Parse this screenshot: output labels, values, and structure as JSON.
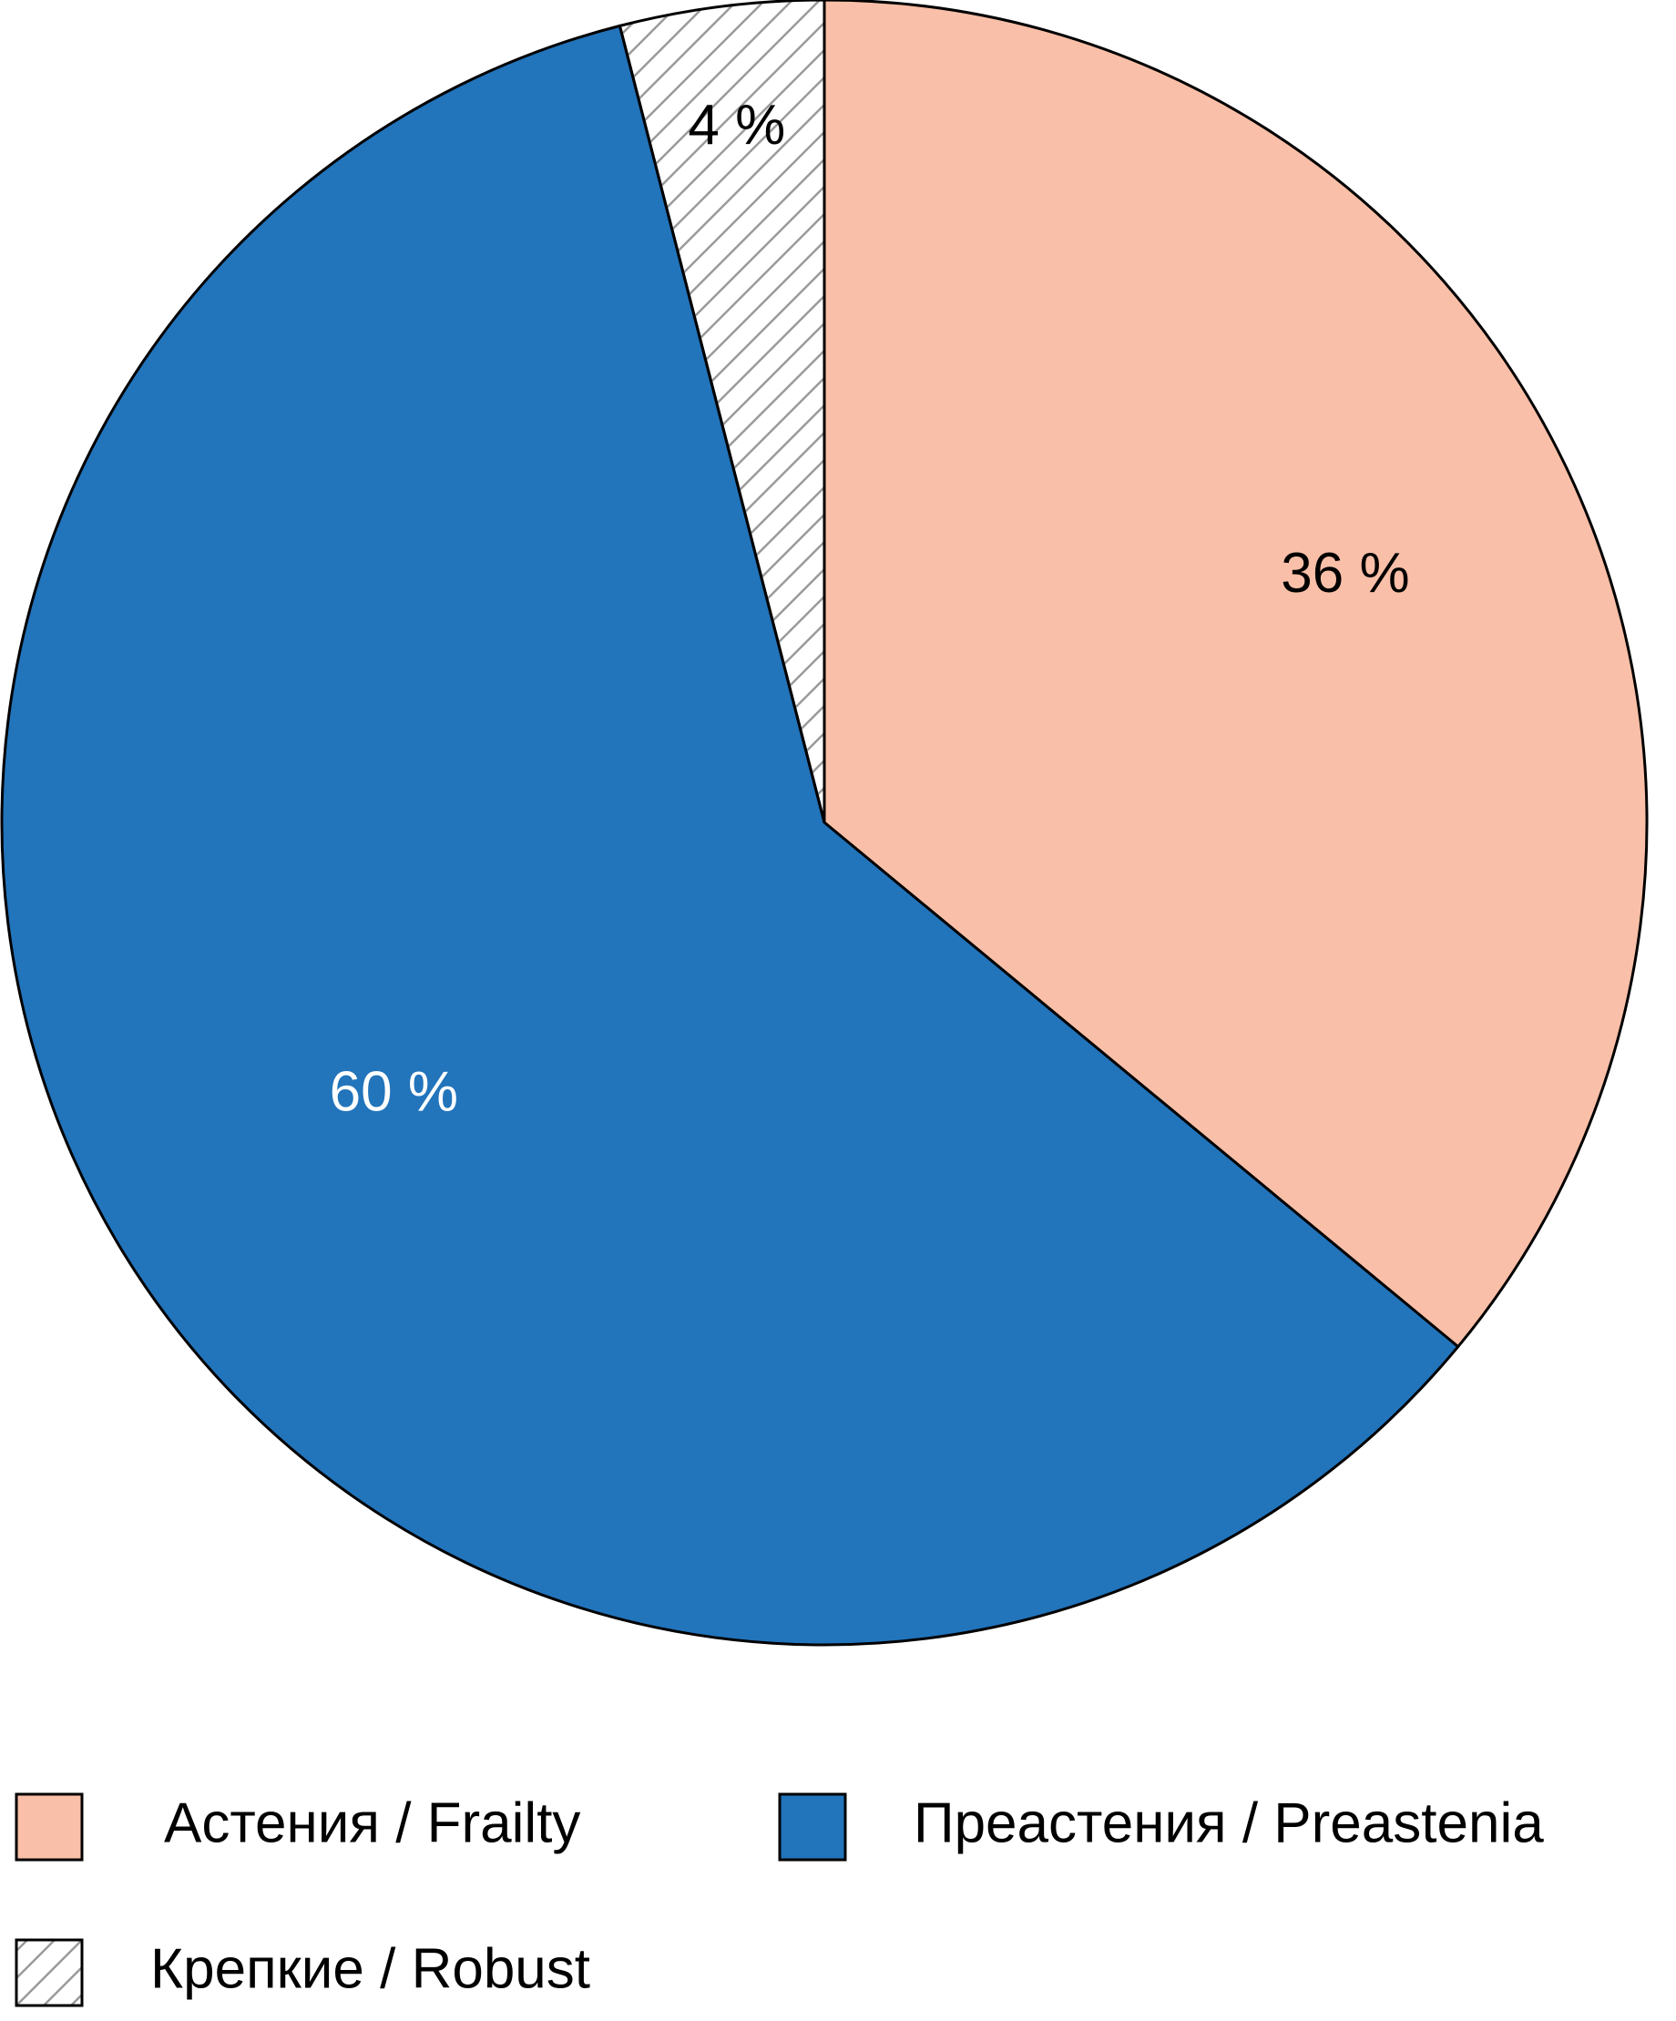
{
  "chart_data": {
    "type": "pie",
    "slices": [
      {
        "key": "frailty",
        "legend": "Астения / Frailty",
        "value": 36,
        "label": "36 %",
        "color": "#fabfa8",
        "label_color": "#000000",
        "pattern": "none"
      },
      {
        "key": "preastenia",
        "legend": "Преастения / Preastenia",
        "value": 60,
        "label": "60 %",
        "color": "#2274bb",
        "label_color": "#ffffff",
        "pattern": "none"
      },
      {
        "key": "robust",
        "legend": "Крепкие / Robust",
        "value": 4,
        "label": "4 %",
        "color": "#ffffff",
        "label_color": "#000000",
        "pattern": "diagonal-hatch"
      }
    ],
    "start_angle_deg": 0,
    "direction": "clockwise",
    "legend_position": "bottom"
  }
}
